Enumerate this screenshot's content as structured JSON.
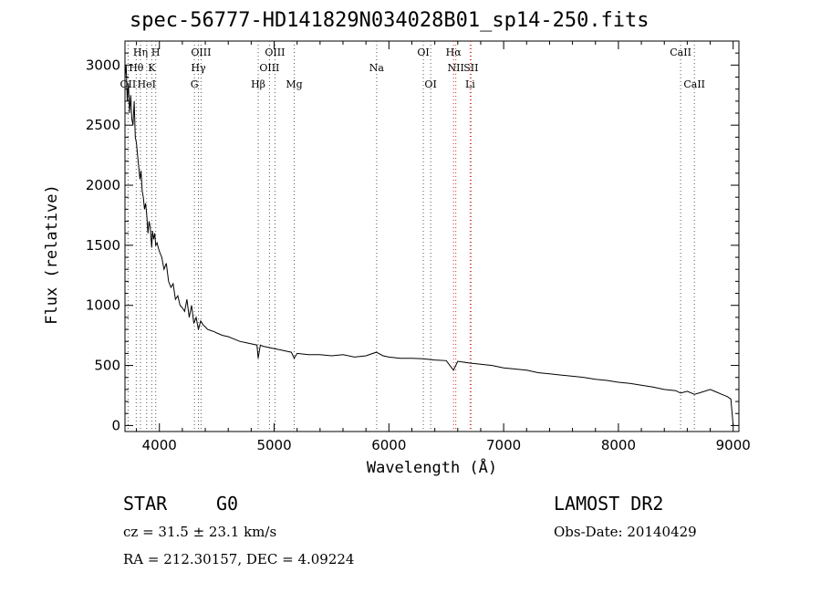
{
  "chart_data": {
    "type": "line",
    "title": "spec-56777-HD141829N034028B01_sp14-250.fits",
    "xlabel": "Wavelength (Å)",
    "ylabel": "Flux (relative)",
    "xlim": [
      3700,
      9050
    ],
    "ylim": [
      -50,
      3200
    ],
    "xticks": [
      4000,
      5000,
      6000,
      7000,
      8000,
      9000
    ],
    "yticks": [
      0,
      500,
      1000,
      1500,
      2000,
      2500,
      3000
    ],
    "grid": false,
    "series": [
      {
        "x": [
          3700,
          3710,
          3720,
          3730,
          3740,
          3750,
          3760,
          3770,
          3780,
          3790,
          3800,
          3810,
          3820,
          3830,
          3840,
          3850,
          3860,
          3870,
          3880,
          3890,
          3900,
          3910,
          3920,
          3933,
          3940,
          3950,
          3960,
          3968,
          3980,
          3990,
          4000,
          4020,
          4040,
          4060,
          4080,
          4101,
          4120,
          4140,
          4160,
          4180,
          4200,
          4220,
          4240,
          4260,
          4280,
          4300,
          4320,
          4340,
          4360,
          4380,
          4400,
          4420,
          4450,
          4480,
          4500,
          4550,
          4600,
          4650,
          4700,
          4750,
          4800,
          4850,
          4861,
          4880,
          4900,
          4950,
          5000,
          5050,
          5100,
          5150,
          5175,
          5200,
          5300,
          5400,
          5500,
          5600,
          5700,
          5800,
          5890,
          5950,
          6000,
          6100,
          6200,
          6300,
          6400,
          6500,
          6563,
          6600,
          6700,
          6800,
          6900,
          7000,
          7100,
          7200,
          7300,
          7400,
          7500,
          7600,
          7700,
          7800,
          7900,
          8000,
          8100,
          8200,
          8300,
          8400,
          8500,
          8542,
          8600,
          8662,
          8700,
          8800,
          8850,
          8900,
          8950,
          8980,
          9000
        ],
        "y": [
          2900,
          3000,
          2700,
          2850,
          2600,
          2750,
          2550,
          2500,
          2700,
          2400,
          2350,
          2250,
          2150,
          2050,
          2120,
          1950,
          1900,
          1800,
          1850,
          1750,
          1600,
          1700,
          1650,
          1480,
          1620,
          1550,
          1600,
          1500,
          1520,
          1480,
          1450,
          1400,
          1300,
          1350,
          1200,
          1150,
          1180,
          1050,
          1080,
          1000,
          980,
          950,
          1050,
          900,
          1000,
          850,
          900,
          800,
          870,
          840,
          820,
          800,
          790,
          780,
          770,
          750,
          740,
          720,
          700,
          690,
          680,
          670,
          560,
          670,
          660,
          650,
          640,
          630,
          620,
          610,
          560,
          600,
          590,
          590,
          580,
          590,
          570,
          580,
          610,
          580,
          570,
          560,
          560,
          555,
          545,
          540,
          460,
          535,
          520,
          510,
          500,
          480,
          470,
          460,
          440,
          430,
          420,
          410,
          400,
          385,
          375,
          360,
          350,
          335,
          320,
          300,
          290,
          270,
          285,
          260,
          270,
          300,
          280,
          260,
          240,
          220,
          0
        ]
      }
    ],
    "line_markers": [
      {
        "label": "OII",
        "wavelength": 3727
      },
      {
        "label": "Hη",
        "wavelength": 3835
      },
      {
        "label": "Hθ",
        "wavelength": 3798
      },
      {
        "label": "H",
        "wavelength": 3968
      },
      {
        "label": "K",
        "wavelength": 3933
      },
      {
        "label": "HeI",
        "wavelength": 3889
      },
      {
        "label": "OIII",
        "wavelength": 4363
      },
      {
        "label": "Hγ",
        "wavelength": 4340
      },
      {
        "label": "G",
        "wavelength": 4305
      },
      {
        "label": "Hβ",
        "wavelength": 4861
      },
      {
        "label": "OIII",
        "wavelength": 4959
      },
      {
        "label": "OIII",
        "wavelength": 5007
      },
      {
        "label": "Mg",
        "wavelength": 5175
      },
      {
        "label": "Na",
        "wavelength": 5893
      },
      {
        "label": "OI",
        "wavelength": 6300
      },
      {
        "label": "OI",
        "wavelength": 6364
      },
      {
        "label": "Hα",
        "wavelength": 6563
      },
      {
        "label": "NII",
        "wavelength": 6583
      },
      {
        "label": "SII",
        "wavelength": 6716
      },
      {
        "label": "Li",
        "wavelength": 6708
      },
      {
        "label": "CaII",
        "wavelength": 8542
      },
      {
        "label": "CaII",
        "wavelength": 8662
      }
    ]
  },
  "info": {
    "class": "STAR",
    "subclass": "G0",
    "survey": "LAMOST DR2",
    "cz": "cz = 31.5 ± 23.1 km/s",
    "obsdate": "Obs-Date: 20140429",
    "radec": "RA = 212.30157, DEC =   4.09224"
  }
}
